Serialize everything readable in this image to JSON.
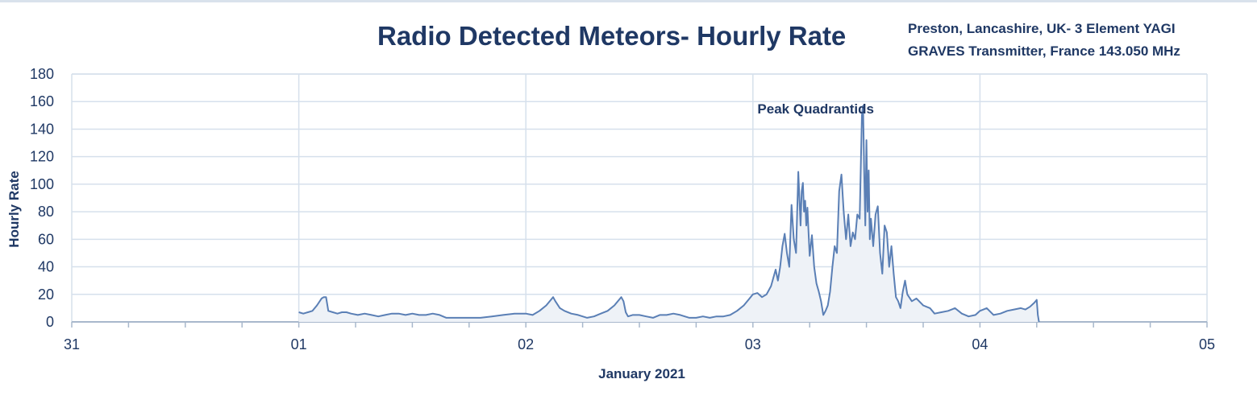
{
  "title": "Radio Detected Meteors- Hourly Rate",
  "station": {
    "line1": "Preston, Lancashire, UK-  3 Element YAGI",
    "line2": "GRAVES Transmitter, France 143.050 MHz"
  },
  "chart_data": {
    "type": "line",
    "title": "Radio Detected Meteors- Hourly Rate",
    "xlabel": "January 2021",
    "ylabel": "Hourly Rate",
    "xlim": [
      0,
      5
    ],
    "ylim": [
      0,
      180
    ],
    "x_ticks": [
      "31",
      "01",
      "02",
      "03",
      "04",
      "05"
    ],
    "y_ticks": [
      0,
      20,
      40,
      60,
      80,
      100,
      120,
      140,
      160,
      180
    ],
    "grid": true,
    "annotation": {
      "text": "Peak Quadrantids",
      "x": 3.02,
      "y": 162
    },
    "colors": {
      "line": "#5a7fb5",
      "fill": "#eef2f7",
      "grid": "#d6e0ec",
      "text": "#1f3864"
    },
    "series": [
      {
        "x": [
          1.0,
          1.02,
          1.04,
          1.06,
          1.08,
          1.1,
          1.11,
          1.12,
          1.13,
          1.15,
          1.17,
          1.19,
          1.21,
          1.23,
          1.26,
          1.29,
          1.32,
          1.35,
          1.38,
          1.41,
          1.44,
          1.47,
          1.5,
          1.53,
          1.56,
          1.59,
          1.62,
          1.65,
          1.68,
          1.7,
          1.72,
          1.75,
          1.8,
          1.85,
          1.9,
          1.95,
          2.0,
          2.03,
          2.06,
          2.09,
          2.11,
          2.12,
          2.13,
          2.15,
          2.17,
          2.2,
          2.23,
          2.25,
          2.27,
          2.3,
          2.33,
          2.36,
          2.39,
          2.41,
          2.42,
          2.43,
          2.44,
          2.45,
          2.47,
          2.5,
          2.53,
          2.56,
          2.59,
          2.62,
          2.65,
          2.68,
          2.7,
          2.72,
          2.75,
          2.78,
          2.81,
          2.84,
          2.87,
          2.9,
          2.93,
          2.96,
          2.98,
          3.0,
          3.02,
          3.04,
          3.06,
          3.08,
          3.1,
          3.11,
          3.12,
          3.13,
          3.14,
          3.15,
          3.16,
          3.17,
          3.18,
          3.19,
          3.2,
          3.21,
          3.215,
          3.22,
          3.225,
          3.23,
          3.235,
          3.24,
          3.245,
          3.25,
          3.26,
          3.27,
          3.28,
          3.29,
          3.3,
          3.31,
          3.32,
          3.33,
          3.34,
          3.35,
          3.36,
          3.37,
          3.38,
          3.39,
          3.4,
          3.41,
          3.42,
          3.43,
          3.44,
          3.45,
          3.46,
          3.47,
          3.48,
          3.485,
          3.49,
          3.495,
          3.5,
          3.505,
          3.51,
          3.515,
          3.52,
          3.525,
          3.53,
          3.54,
          3.55,
          3.56,
          3.57,
          3.58,
          3.59,
          3.6,
          3.61,
          3.62,
          3.63,
          3.64,
          3.65,
          3.66,
          3.67,
          3.68,
          3.7,
          3.72,
          3.75,
          3.78,
          3.8,
          3.83,
          3.86,
          3.89,
          3.92,
          3.95,
          3.98,
          4.0,
          4.03,
          4.06,
          4.09,
          4.12,
          4.15,
          4.18,
          4.2,
          4.22,
          4.24,
          4.25,
          4.255,
          4.26
        ],
        "y": [
          7,
          6,
          7,
          8,
          12,
          17,
          18,
          18,
          8,
          7,
          6,
          7,
          7,
          6,
          5,
          6,
          5,
          4,
          5,
          6,
          6,
          5,
          6,
          5,
          5,
          6,
          5,
          3,
          3,
          3,
          3,
          3,
          3,
          4,
          5,
          6,
          6,
          5,
          8,
          12,
          16,
          18,
          15,
          10,
          8,
          6,
          5,
          4,
          3,
          4,
          6,
          8,
          12,
          16,
          18,
          15,
          7,
          4,
          5,
          5,
          4,
          3,
          5,
          5,
          6,
          5,
          4,
          3,
          3,
          4,
          3,
          4,
          4,
          5,
          8,
          12,
          16,
          20,
          21,
          18,
          20,
          26,
          38,
          30,
          40,
          55,
          64,
          50,
          40,
          85,
          60,
          50,
          109,
          70,
          95,
          101,
          80,
          88,
          70,
          83,
          65,
          48,
          63,
          40,
          28,
          22,
          15,
          5,
          8,
          12,
          22,
          40,
          55,
          50,
          95,
          107,
          80,
          60,
          78,
          55,
          65,
          60,
          78,
          75,
          150,
          157,
          110,
          70,
          132,
          80,
          110,
          60,
          75,
          65,
          55,
          78,
          84,
          50,
          35,
          70,
          65,
          40,
          55,
          35,
          18,
          15,
          10,
          22,
          30,
          20,
          15,
          17,
          12,
          10,
          6,
          7,
          8,
          10,
          6,
          4,
          5,
          8,
          10,
          5,
          6,
          8,
          9,
          10,
          9,
          11,
          14,
          16,
          5,
          0
        ]
      }
    ]
  }
}
